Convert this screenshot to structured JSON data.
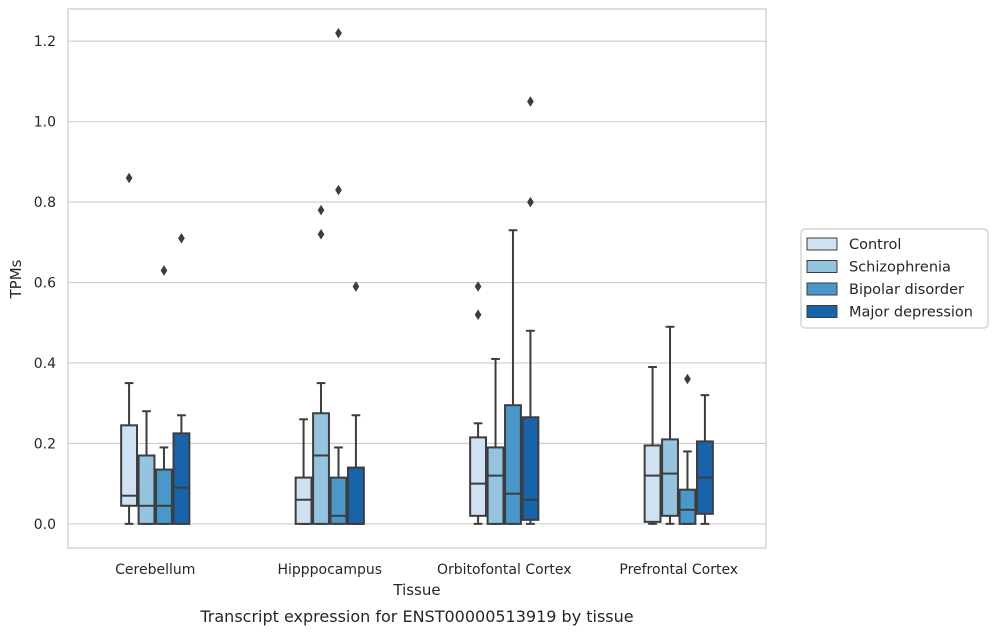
{
  "chart_data": {
    "type": "boxplot",
    "title": "",
    "xlabel": "Tissue",
    "ylabel": "TPMs",
    "caption": "Transcript expression for ENST00000513919 by tissue",
    "ylim": [
      -0.06,
      1.28
    ],
    "yticks": [
      0.0,
      0.2,
      0.4,
      0.6,
      0.8,
      1.0,
      1.2
    ],
    "ytick_labels": [
      "0.0",
      "0.2",
      "0.4",
      "0.6",
      "0.8",
      "1.0",
      "1.2"
    ],
    "grid": "horizontal",
    "legend_position": "right",
    "categories": [
      "Cerebellum",
      "Hipppocampus",
      "Orbitofontal Cortex",
      "Prefrontal Cortex"
    ],
    "series": [
      {
        "name": "Control",
        "color": "#d0e1f2",
        "boxes": [
          {
            "whisker_low": 0.0,
            "q1": 0.045,
            "median": 0.07,
            "q3": 0.245,
            "whisker_high": 0.35,
            "outliers": [
              0.86
            ]
          },
          {
            "whisker_low": 0.0,
            "q1": 0.0,
            "median": 0.06,
            "q3": 0.115,
            "whisker_high": 0.26,
            "outliers": []
          },
          {
            "whisker_low": 0.0,
            "q1": 0.02,
            "median": 0.1,
            "q3": 0.215,
            "whisker_high": 0.25,
            "outliers": [
              0.52,
              0.59
            ]
          },
          {
            "whisker_low": 0.0,
            "q1": 0.005,
            "median": 0.12,
            "q3": 0.195,
            "whisker_high": 0.39,
            "outliers": []
          }
        ]
      },
      {
        "name": "Schizophrenia",
        "color": "#94c4df",
        "boxes": [
          {
            "whisker_low": 0.0,
            "q1": 0.0,
            "median": 0.045,
            "q3": 0.17,
            "whisker_high": 0.28,
            "outliers": []
          },
          {
            "whisker_low": 0.0,
            "q1": 0.0,
            "median": 0.17,
            "q3": 0.275,
            "whisker_high": 0.35,
            "outliers": [
              0.72,
              0.78
            ]
          },
          {
            "whisker_low": 0.0,
            "q1": 0.0,
            "median": 0.12,
            "q3": 0.19,
            "whisker_high": 0.41,
            "outliers": []
          },
          {
            "whisker_low": 0.0,
            "q1": 0.02,
            "median": 0.125,
            "q3": 0.21,
            "whisker_high": 0.49,
            "outliers": []
          }
        ]
      },
      {
        "name": "Bipolar disorder",
        "color": "#4a98c9",
        "boxes": [
          {
            "whisker_low": 0.0,
            "q1": 0.0,
            "median": 0.045,
            "q3": 0.135,
            "whisker_high": 0.19,
            "outliers": [
              0.63
            ]
          },
          {
            "whisker_low": 0.0,
            "q1": 0.0,
            "median": 0.02,
            "q3": 0.115,
            "whisker_high": 0.19,
            "outliers": [
              0.83,
              1.22
            ]
          },
          {
            "whisker_low": 0.0,
            "q1": 0.0,
            "median": 0.075,
            "q3": 0.295,
            "whisker_high": 0.73,
            "outliers": []
          },
          {
            "whisker_low": 0.0,
            "q1": 0.0,
            "median": 0.035,
            "q3": 0.085,
            "whisker_high": 0.18,
            "outliers": [
              0.36
            ]
          }
        ]
      },
      {
        "name": "Major depression",
        "color": "#1764ab",
        "boxes": [
          {
            "whisker_low": 0.0,
            "q1": 0.0,
            "median": 0.09,
            "q3": 0.225,
            "whisker_high": 0.27,
            "outliers": [
              0.71
            ]
          },
          {
            "whisker_low": 0.0,
            "q1": 0.0,
            "median": 0.0,
            "q3": 0.14,
            "whisker_high": 0.27,
            "outliers": [
              0.59
            ]
          },
          {
            "whisker_low": 0.0,
            "q1": 0.01,
            "median": 0.06,
            "q3": 0.265,
            "whisker_high": 0.48,
            "outliers": [
              0.8,
              1.05
            ]
          },
          {
            "whisker_low": 0.0,
            "q1": 0.025,
            "median": 0.115,
            "q3": 0.205,
            "whisker_high": 0.32,
            "outliers": []
          }
        ]
      }
    ]
  }
}
